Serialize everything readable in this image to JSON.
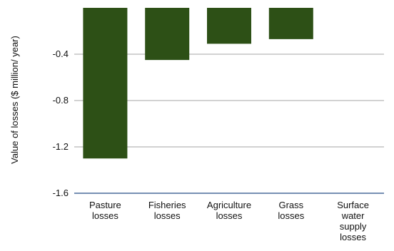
{
  "chart_data": {
    "type": "bar",
    "categories": [
      "Pasture losses",
      "Fisheries losses",
      "Agriculture losses",
      "Grass losses",
      "Surface water supply losses"
    ],
    "category_lines": [
      [
        "Pasture",
        "losses"
      ],
      [
        "Fisheries",
        "losses"
      ],
      [
        "Agriculture",
        "losses"
      ],
      [
        "Grass",
        "losses"
      ],
      [
        "Surface",
        "water",
        "supply",
        "losses"
      ]
    ],
    "values": [
      -1.3,
      -0.45,
      -0.31,
      -0.27,
      0
    ],
    "ylabel": "Value of losses ($ million/ year)",
    "ylim": [
      -1.6,
      0
    ],
    "yticks": [
      -0.4,
      -0.8,
      -1.2,
      -1.6
    ],
    "ytick_labels": [
      "-0.4",
      "-0.8",
      "-1.2",
      "-1.6"
    ],
    "grid": true,
    "bar_color": "#2d5016",
    "grid_color": "#a6a6a6",
    "axis_color": "#4a6b9a"
  }
}
